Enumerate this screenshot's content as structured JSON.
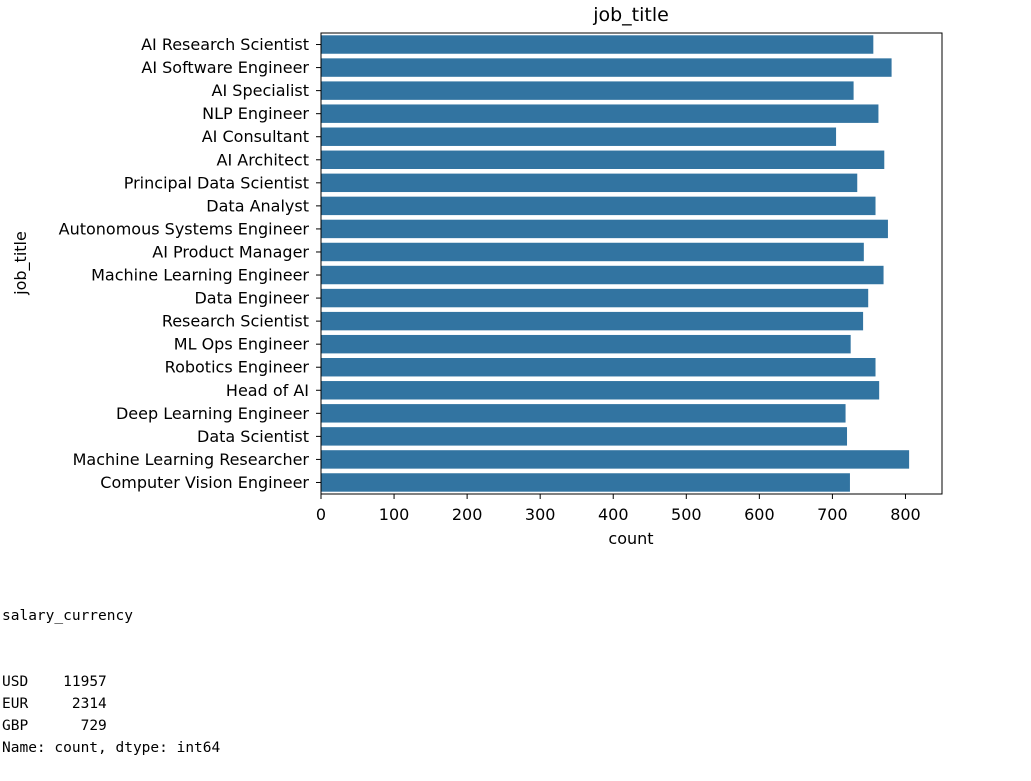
{
  "chart_data": {
    "type": "bar",
    "orientation": "horizontal",
    "title": "job_title",
    "xlabel": "count",
    "ylabel": "job_title",
    "xlim": [
      0,
      850
    ],
    "xticks": [
      0,
      100,
      200,
      300,
      400,
      500,
      600,
      700,
      800
    ],
    "grid": false,
    "bar_color": "#3274a1",
    "categories": [
      "AI Research Scientist",
      "AI Software Engineer",
      "AI Specialist",
      "NLP Engineer",
      "AI Consultant",
      "AI Architect",
      "Principal Data Scientist",
      "Data Analyst",
      "Autonomous Systems Engineer",
      "AI Product Manager",
      "Machine Learning Engineer",
      "Data Engineer",
      "Research Scientist",
      "ML Ops Engineer",
      "Robotics Engineer",
      "Head of AI",
      "Deep Learning Engineer",
      "Data Scientist",
      "Machine Learning Researcher",
      "Computer Vision Engineer"
    ],
    "values": [
      756,
      781,
      729,
      763,
      705,
      771,
      734,
      759,
      776,
      743,
      770,
      749,
      742,
      725,
      759,
      764,
      718,
      720,
      805,
      724
    ]
  },
  "output": {
    "header": "salary_currency",
    "rows": [
      {
        "label": "USD",
        "value": "11957"
      },
      {
        "label": "EUR",
        "value": "2314"
      },
      {
        "label": "GBP",
        "value": "729"
      }
    ],
    "footer": "Name: count, dtype: int64"
  }
}
